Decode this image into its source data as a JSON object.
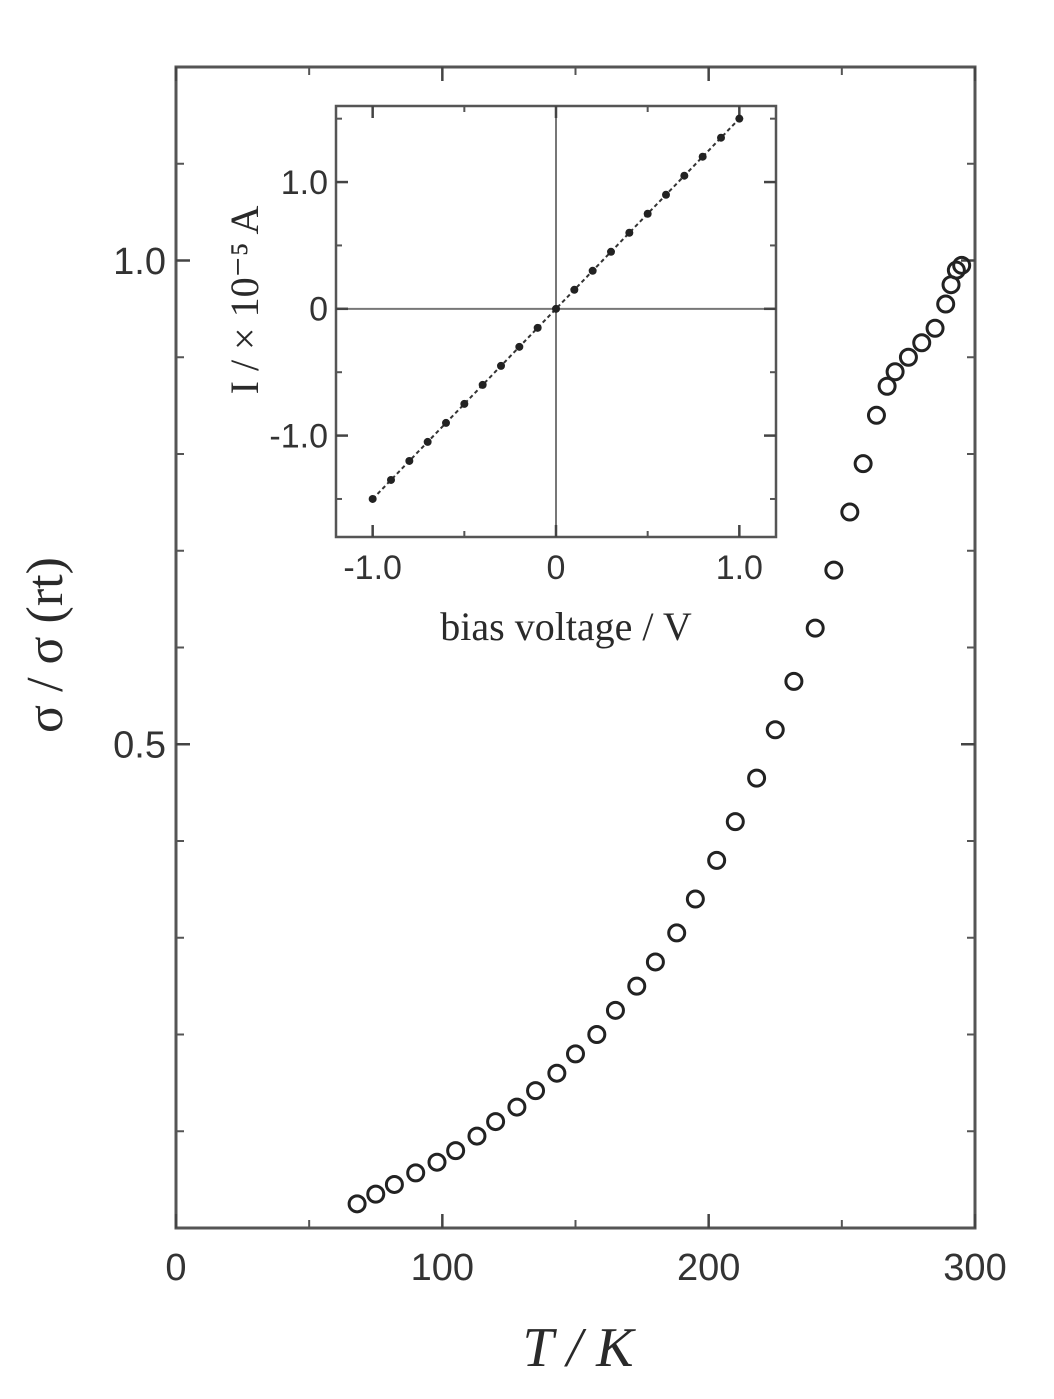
{
  "chart_data": [
    {
      "type": "scatter",
      "panel": "main",
      "xlabel": "T / K",
      "ylabel": "σ / σ (rt)",
      "xlim": [
        0,
        300
      ],
      "ylim": [
        0,
        1.2
      ],
      "x_ticks": [
        0,
        100,
        200,
        300
      ],
      "x_tick_labels": [
        "0",
        "100",
        "200",
        "300"
      ],
      "y_ticks": [
        0.5,
        1.0
      ],
      "y_tick_labels": [
        "0.5",
        "1.0"
      ],
      "marker": "open-circle",
      "grid": false,
      "series": [
        {
          "x": [
            68,
            75,
            82,
            90,
            98,
            105,
            113,
            120,
            128,
            135,
            143,
            150,
            158,
            165,
            173,
            180,
            188,
            195,
            203,
            210,
            218,
            225,
            232,
            240,
            247,
            253,
            258,
            263,
            267,
            270,
            275,
            280,
            285,
            289,
            291,
            293,
            295
          ],
          "y": [
            0.025,
            0.035,
            0.045,
            0.057,
            0.068,
            0.08,
            0.095,
            0.11,
            0.125,
            0.142,
            0.16,
            0.18,
            0.2,
            0.225,
            0.25,
            0.275,
            0.305,
            0.34,
            0.38,
            0.42,
            0.465,
            0.515,
            0.565,
            0.62,
            0.68,
            0.74,
            0.79,
            0.84,
            0.87,
            0.885,
            0.9,
            0.915,
            0.93,
            0.955,
            0.975,
            0.99,
            0.995
          ]
        }
      ]
    },
    {
      "type": "scatter",
      "panel": "inset",
      "xlabel": "bias voltage / V",
      "ylabel": "I / × 10⁻⁵ A",
      "xlim": [
        -1.2,
        1.2
      ],
      "ylim": [
        -1.8,
        1.6
      ],
      "x_ticks": [
        -1.0,
        0,
        1.0
      ],
      "x_tick_labels": [
        "-1.0",
        "0",
        "1.0"
      ],
      "y_ticks": [
        -1.0,
        0,
        1.0
      ],
      "y_tick_labels": [
        "-1.0",
        "0",
        "1.0"
      ],
      "marker": "filled-circle",
      "grid": false,
      "zero_lines": true,
      "series": [
        {
          "x": [
            -1.0,
            -0.9,
            -0.8,
            -0.7,
            -0.6,
            -0.5,
            -0.4,
            -0.3,
            -0.2,
            -0.1,
            0.0,
            0.1,
            0.2,
            0.3,
            0.4,
            0.5,
            0.6,
            0.7,
            0.8,
            0.9,
            1.0
          ],
          "y": [
            -1.5,
            -1.35,
            -1.2,
            -1.05,
            -0.9,
            -0.75,
            -0.6,
            -0.45,
            -0.3,
            -0.15,
            0.0,
            0.15,
            0.3,
            0.45,
            0.6,
            0.75,
            0.9,
            1.05,
            1.2,
            1.35,
            1.5
          ]
        }
      ]
    }
  ]
}
